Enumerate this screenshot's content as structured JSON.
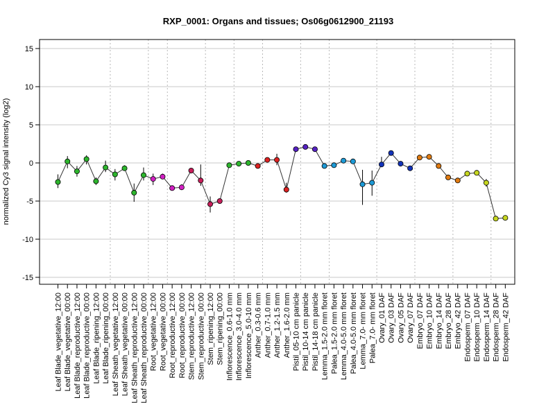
{
  "chart_data": {
    "type": "line",
    "title": "RXP_0001: Organs and tissues; Os06g0612900_21193",
    "ylabel": "normalized Cy3 signal intensity (log2)",
    "xlabel": "",
    "ylim": [
      -16.2,
      16.2
    ],
    "yticks": [
      -15,
      -10,
      -5,
      0,
      5,
      10,
      15
    ],
    "grid": "horizontal solid at y ticks, vertical dotted between tissue groups",
    "group_separators_after_index": [
      5,
      9,
      11,
      15,
      18,
      21,
      25,
      28,
      33,
      37,
      41,
      45
    ],
    "series": [
      {
        "categories": [
          "Leaf Blade_vegetative_12:00",
          "Leaf Blade_vegetative_00:00",
          "Leaf Blade_reproductive_12:00",
          "Leaf Blade_reproductive_00:00",
          "Leaf Blade_ripening_12:00",
          "Leaf Blade_ripening_00:00",
          "Leaf Sheath_vegetative_12:00",
          "Leaf Sheath_vegetative_00:00",
          "Leaf Sheath_reproductive_12:00",
          "Leaf Sheath_reproductive_00:00",
          "Root_vegetative_12:00",
          "Root_vegetative_00:00",
          "Root_reproductive_12:00",
          "Root_reproductive_00:00",
          "Stem_reproductive_12:00",
          "Stem_reproductive_00:00",
          "Stem_ripening_12:00",
          "Stem_ripening_00:00",
          "Inflorescence_0.6-1.0 mm",
          "Inflorescence_3.0-4.0 mm",
          "Inflorescence_5.0-10 mm",
          "Anther_0.3-0.6 mm",
          "Anther_0.7-1.0 mm",
          "Anther_1.2-1.5 mm",
          "Anther_1.6-2.0 mm",
          "Pistil_05-10 cm panicle",
          "Pistil_10-14 cm panicle",
          "Pistil_14-18 cm panicle",
          "Lemma_1.5-2.0 mm floret",
          "Palea_1.5-2.0 mm floret",
          "Lemma_4.0-5.0 mm floret",
          "Palea_4.0-5.0 mm floret",
          "Lemma_7.0- mm floret",
          "Palea_7.0- mm floret",
          "Ovary_01 DAF",
          "Ovary_03 DAF",
          "Ovary_05 DAF",
          "Ovary_07 DAF",
          "Embryo_07 DAF",
          "Embryo_10 DAF",
          "Embryo_14 DAF",
          "Embryo_28 DAF",
          "Embryo_42 DAF",
          "Endosperm_07 DAF",
          "Endosperm_10 DAF",
          "Endosperm_14 DAF",
          "Endosperm_28 DAF",
          "Endosperm_42 DAF"
        ],
        "values": [
          -2.5,
          0.2,
          -1.1,
          0.5,
          -2.4,
          -0.6,
          -1.5,
          -0.7,
          -3.9,
          -1.6,
          -2.1,
          -1.8,
          -3.3,
          -3.2,
          -1.0,
          -2.3,
          -5.4,
          -5.0,
          -0.3,
          -0.1,
          0.0,
          -0.4,
          0.4,
          0.4,
          -3.5,
          1.8,
          2.1,
          1.8,
          -0.4,
          -0.3,
          0.3,
          0.2,
          -2.8,
          -2.6,
          -0.2,
          1.3,
          -0.1,
          -0.7,
          0.7,
          0.8,
          -0.4,
          -1.9,
          -2.3,
          -1.4,
          -1.3,
          -2.6,
          -7.3,
          -7.2
        ],
        "error_low": [
          -3.3,
          -0.7,
          -1.8,
          -0.2,
          -2.9,
          -1.2,
          -2.3,
          -1.0,
          -5.1,
          -2.3,
          -2.9,
          -2.1,
          -3.5,
          -3.5,
          -1.2,
          -3.0,
          -6.5,
          -5.2,
          -0.6,
          -0.3,
          -0.2,
          -0.7,
          0.2,
          -0.3,
          -3.9,
          1.6,
          1.9,
          1.6,
          -0.6,
          -0.6,
          0.1,
          0.0,
          -5.5,
          -4.3,
          -0.5,
          1.0,
          -0.3,
          -1.0,
          0.5,
          0.6,
          -0.7,
          -2.1,
          -2.5,
          -1.6,
          -1.5,
          -3.1,
          -7.5,
          -7.4
        ],
        "error_high": [
          -1.5,
          0.9,
          -0.4,
          1.0,
          -1.9,
          0.3,
          -0.8,
          -0.3,
          -2.7,
          -0.6,
          -1.4,
          -1.4,
          -3.1,
          -2.8,
          -0.8,
          -0.2,
          -4.4,
          -4.8,
          0.0,
          0.1,
          0.2,
          -0.1,
          0.6,
          1.2,
          -2.6,
          2.0,
          2.3,
          2.0,
          -0.1,
          0.0,
          0.5,
          0.4,
          -0.9,
          -1.0,
          0.8,
          1.6,
          0.1,
          -0.4,
          0.9,
          1.0,
          -0.1,
          -1.7,
          -2.1,
          -1.2,
          -1.1,
          -2.1,
          -7.1,
          -7.0
        ],
        "colors": [
          "#2db52d",
          "#2db52d",
          "#2db52d",
          "#2db52d",
          "#2db52d",
          "#2db52d",
          "#2db52d",
          "#2db52d",
          "#2db52d",
          "#2db52d",
          "#d11fc2",
          "#d11fc2",
          "#d11fc2",
          "#d11fc2",
          "#c81e5a",
          "#c81e5a",
          "#c81e5a",
          "#c81e5a",
          "#2db52d",
          "#2db52d",
          "#2db52d",
          "#dd2222",
          "#dd2222",
          "#dd2222",
          "#dd2222",
          "#5521c2",
          "#5521c2",
          "#5521c2",
          "#1d9ad6",
          "#1d9ad6",
          "#1d9ad6",
          "#1d9ad6",
          "#1d9ad6",
          "#1d9ad6",
          "#1232b8",
          "#1232b8",
          "#1232b8",
          "#1232b8",
          "#e07b12",
          "#e07b12",
          "#e07b12",
          "#e07b12",
          "#e07b12",
          "#c6d620",
          "#c6d620",
          "#c6d620",
          "#c6d620",
          "#c6d620"
        ]
      }
    ]
  }
}
